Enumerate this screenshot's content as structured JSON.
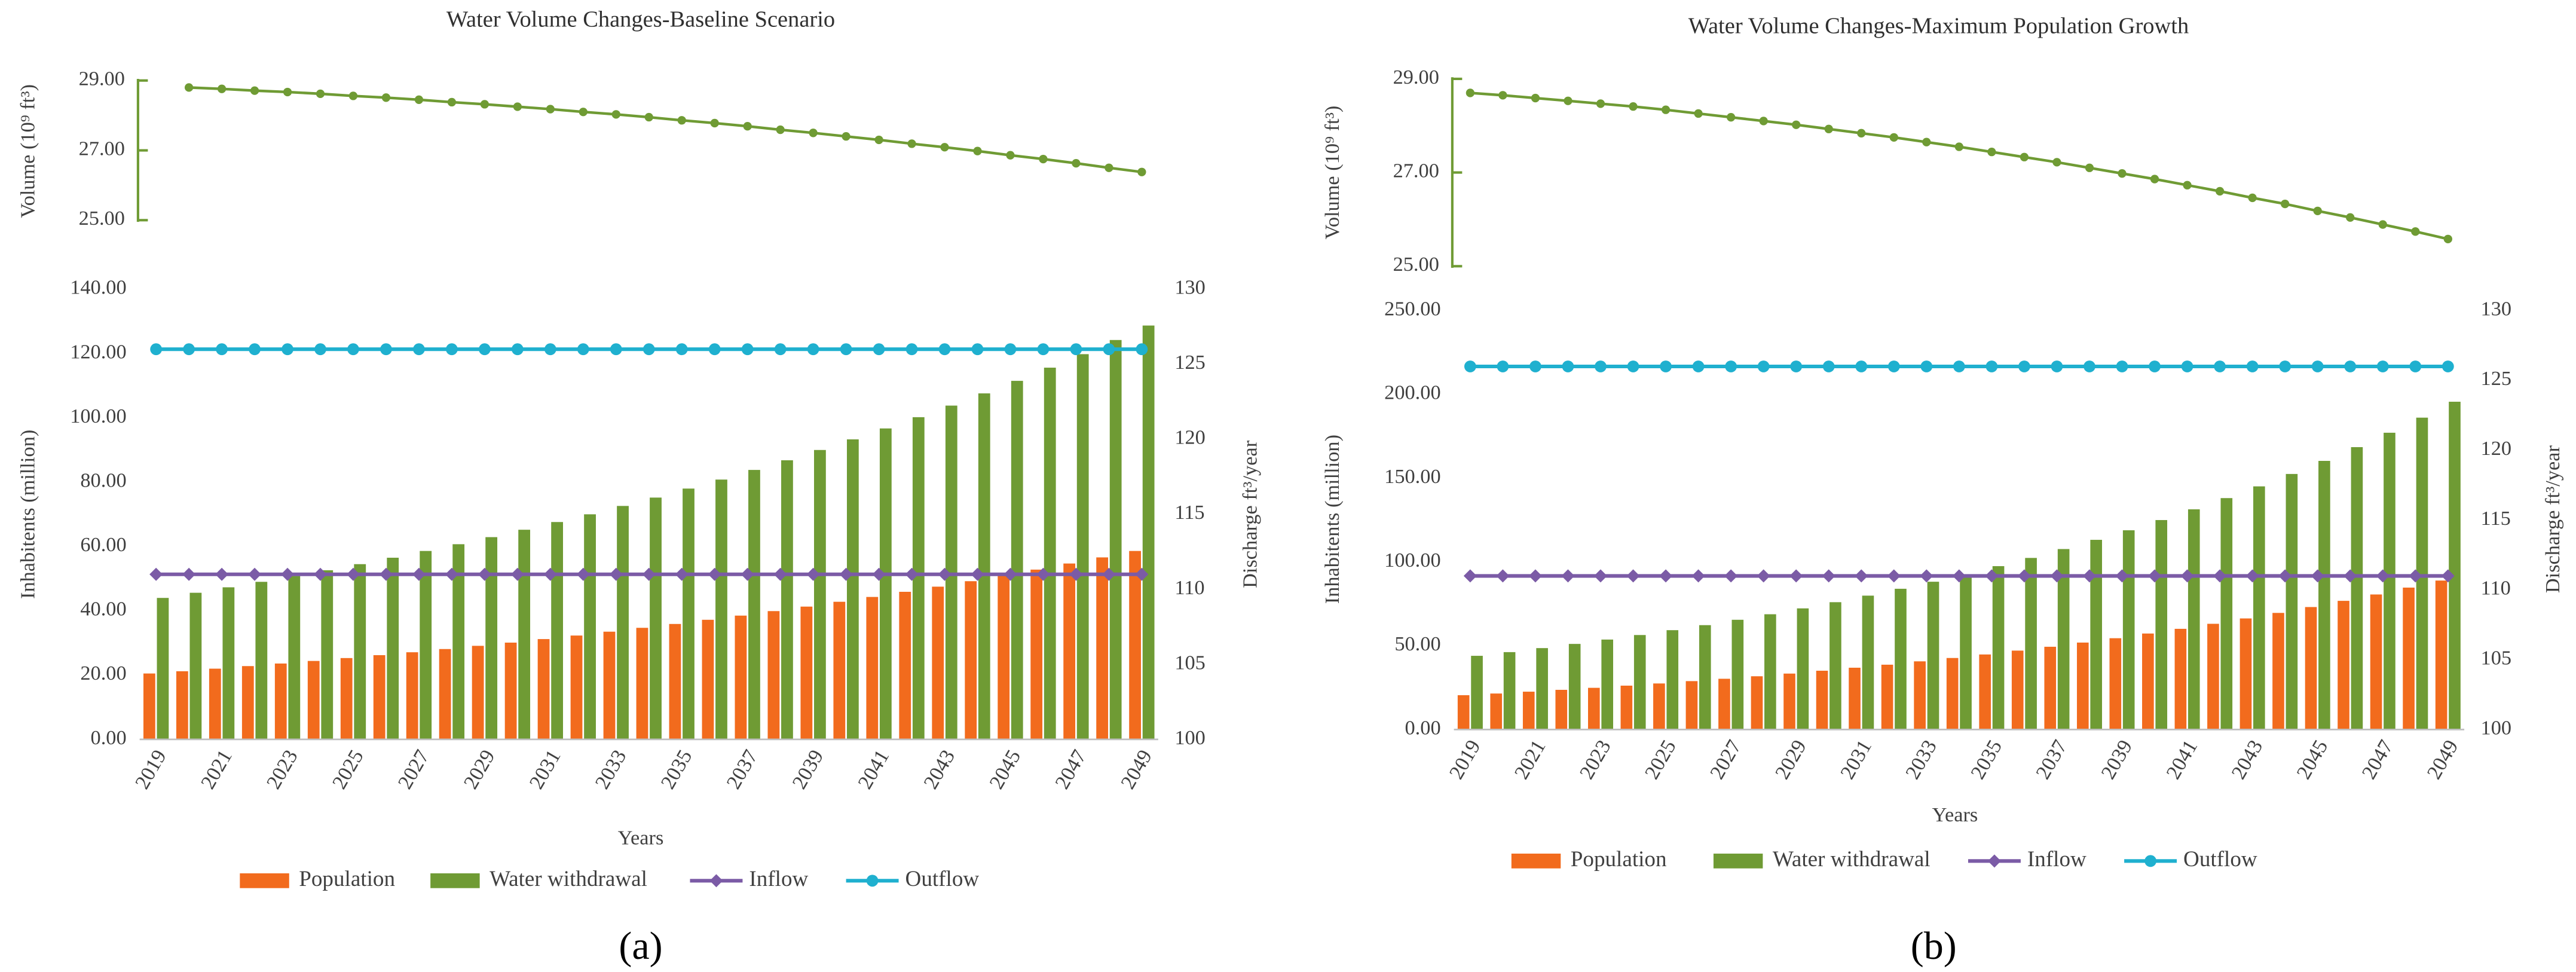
{
  "chart_data": [
    {
      "type": "line",
      "title": "Water Volume Changes-Baseline Scenario",
      "y_label": "Volume (10⁹ ft³)",
      "ylim": [
        25,
        29
      ],
      "yticks": [
        {
          "value": 25,
          "label": "25.00"
        },
        {
          "value": 27,
          "label": "27.00"
        },
        {
          "value": 29,
          "label": "29.00"
        }
      ],
      "series": [
        {
          "color": "#6f9b34",
          "values": [
            null,
            28.8,
            28.76,
            28.71,
            28.67,
            28.62,
            28.56,
            28.51,
            28.45,
            28.38,
            28.32,
            28.25,
            28.18,
            28.1,
            28.03,
            27.95,
            27.86,
            27.78,
            27.69,
            27.59,
            27.5,
            27.4,
            27.3,
            27.19,
            27.09,
            26.98,
            26.86,
            26.75,
            26.63,
            26.5,
            26.38
          ]
        }
      ]
    },
    {
      "type": "combo",
      "label": "(a)",
      "x_label": "Years",
      "y_label": "Inhabitents (million)",
      "y2_label": "Discharge ft³/year",
      "categories": [
        "2019",
        null,
        "2021",
        null,
        "2023",
        null,
        "2025",
        null,
        "2027",
        null,
        "2029",
        null,
        "2031",
        null,
        "2033",
        null,
        "2035",
        null,
        "2037",
        null,
        "2039",
        null,
        "2041",
        null,
        "2043",
        null,
        "2045",
        null,
        "2047",
        null,
        "2049"
      ],
      "ylim": [
        0,
        140
      ],
      "yticks": [
        {
          "value": 0,
          "label": "0.00"
        },
        {
          "value": 20,
          "label": "20.00"
        },
        {
          "value": 40,
          "label": "40.00"
        },
        {
          "value": 60,
          "label": "60.00"
        },
        {
          "value": 80,
          "label": "80.00"
        },
        {
          "value": 100,
          "label": "100.00"
        },
        {
          "value": 120,
          "label": "120.00"
        },
        {
          "value": 140,
          "label": "140.00"
        }
      ],
      "y2lim": [
        100,
        130
      ],
      "y2ticks": [
        100,
        105,
        110,
        115,
        120,
        125,
        130
      ],
      "series": [
        {
          "name": "Population",
          "type": "bar",
          "color": "#f26b1d",
          "values": [
            20.5,
            21.2,
            22.0,
            22.8,
            23.6,
            24.4,
            25.3,
            26.2,
            27.1,
            28.1,
            29.1,
            30.1,
            31.2,
            32.3,
            33.5,
            34.7,
            35.9,
            37.2,
            38.5,
            39.9,
            41.3,
            42.8,
            44.3,
            45.9,
            47.5,
            49.2,
            51.0,
            52.8,
            54.7,
            56.6,
            58.6
          ]
        },
        {
          "name": "Water withdrawal",
          "type": "bar",
          "color": "#6f9b34",
          "values": [
            44.0,
            45.6,
            47.3,
            49.0,
            50.8,
            52.6,
            54.5,
            56.5,
            58.6,
            60.7,
            62.9,
            65.2,
            67.6,
            70.0,
            72.6,
            75.2,
            78.0,
            80.8,
            83.8,
            86.8,
            90.0,
            93.3,
            96.7,
            100.2,
            103.8,
            107.6,
            111.5,
            115.6,
            119.8,
            124.2,
            128.7
          ]
        },
        {
          "name": "Inflow",
          "type": "line",
          "axis": "y2",
          "color": "#7b5ba6",
          "values": [
            111,
            111,
            111,
            111,
            111,
            111,
            111,
            111,
            111,
            111,
            111,
            111,
            111,
            111,
            111,
            111,
            111,
            111,
            111,
            111,
            111,
            111,
            111,
            111,
            111,
            111,
            111,
            111,
            111,
            111,
            111
          ]
        },
        {
          "name": "Outflow",
          "type": "line",
          "axis": "y2",
          "color": "#1fb0cf",
          "values": [
            126,
            126,
            126,
            126,
            126,
            126,
            126,
            126,
            126,
            126,
            126,
            126,
            126,
            126,
            126,
            126,
            126,
            126,
            126,
            126,
            126,
            126,
            126,
            126,
            126,
            126,
            126,
            126,
            126,
            126,
            126
          ]
        }
      ]
    },
    {
      "type": "line",
      "title": "Water Volume Changes-Maximum Population Growth",
      "y_label": "Volume (10⁹ ft³)",
      "ylim": [
        25,
        29
      ],
      "yticks": [
        {
          "value": 25,
          "label": "25.00"
        },
        {
          "value": 27,
          "label": "27.00"
        },
        {
          "value": 29,
          "label": "29.00"
        }
      ],
      "series": [
        {
          "color": "#6f9b34",
          "values": [
            28.7,
            28.65,
            28.59,
            28.53,
            28.47,
            28.41,
            28.34,
            28.26,
            28.18,
            28.1,
            28.02,
            27.93,
            27.84,
            27.75,
            27.65,
            27.55,
            27.44,
            27.33,
            27.22,
            27.1,
            26.98,
            26.86,
            26.73,
            26.6,
            26.46,
            26.33,
            26.18,
            26.04,
            25.89,
            25.74,
            25.58
          ]
        }
      ]
    },
    {
      "type": "combo",
      "label": "(b)",
      "x_label": "Years",
      "y_label": "Inhabitents (million)",
      "y2_label": "Discharge ft³/year",
      "categories": [
        "2019",
        null,
        "2021",
        null,
        "2023",
        null,
        "2025",
        null,
        "2027",
        null,
        "2029",
        null,
        "2031",
        null,
        "2033",
        null,
        "2035",
        null,
        "2037",
        null,
        "2039",
        null,
        "2041",
        null,
        "2043",
        null,
        "2045",
        null,
        "2047",
        null,
        "2049"
      ],
      "ylim": [
        0,
        250
      ],
      "yticks": [
        {
          "value": 0,
          "label": "0.00"
        },
        {
          "value": 50,
          "label": "50.00"
        },
        {
          "value": 100,
          "label": "100.00"
        },
        {
          "value": 150,
          "label": "150.00"
        },
        {
          "value": 200,
          "label": "200.00"
        },
        {
          "value": 250,
          "label": "250.00"
        }
      ],
      "y2lim": [
        100,
        130
      ],
      "y2ticks": [
        100,
        105,
        110,
        115,
        120,
        125,
        130
      ],
      "series": [
        {
          "name": "Population",
          "type": "bar",
          "color": "#f26b1d",
          "values": [
            20.5,
            21.5,
            22.6,
            23.7,
            24.9,
            26.2,
            27.5,
            28.9,
            30.3,
            31.8,
            33.4,
            35.1,
            36.9,
            38.7,
            40.7,
            42.7,
            44.8,
            47.1,
            49.4,
            51.9,
            54.5,
            57.3,
            60.1,
            63.1,
            66.3,
            69.6,
            73.1,
            76.8,
            80.6,
            84.7,
            88.9
          ]
        },
        {
          "name": "Water withdrawal",
          "type": "bar",
          "color": "#6f9b34",
          "values": [
            44.0,
            46.2,
            48.6,
            51.1,
            53.7,
            56.4,
            59.3,
            62.3,
            65.5,
            68.8,
            72.3,
            76.0,
            79.9,
            84.0,
            88.2,
            92.7,
            97.5,
            102.4,
            107.7,
            113.2,
            118.9,
            125.0,
            131.4,
            138.1,
            145.1,
            152.5,
            160.3,
            168.5,
            177.1,
            186.1,
            195.6
          ]
        },
        {
          "name": "Inflow",
          "type": "line",
          "axis": "y2",
          "color": "#7b5ba6",
          "values": [
            111,
            111,
            111,
            111,
            111,
            111,
            111,
            111,
            111,
            111,
            111,
            111,
            111,
            111,
            111,
            111,
            111,
            111,
            111,
            111,
            111,
            111,
            111,
            111,
            111,
            111,
            111,
            111,
            111,
            111,
            111
          ]
        },
        {
          "name": "Outflow",
          "type": "line",
          "axis": "y2",
          "color": "#1fb0cf",
          "values": [
            126,
            126,
            126,
            126,
            126,
            126,
            126,
            126,
            126,
            126,
            126,
            126,
            126,
            126,
            126,
            126,
            126,
            126,
            126,
            126,
            126,
            126,
            126,
            126,
            126,
            126,
            126,
            126,
            126,
            126,
            126
          ]
        }
      ]
    }
  ]
}
